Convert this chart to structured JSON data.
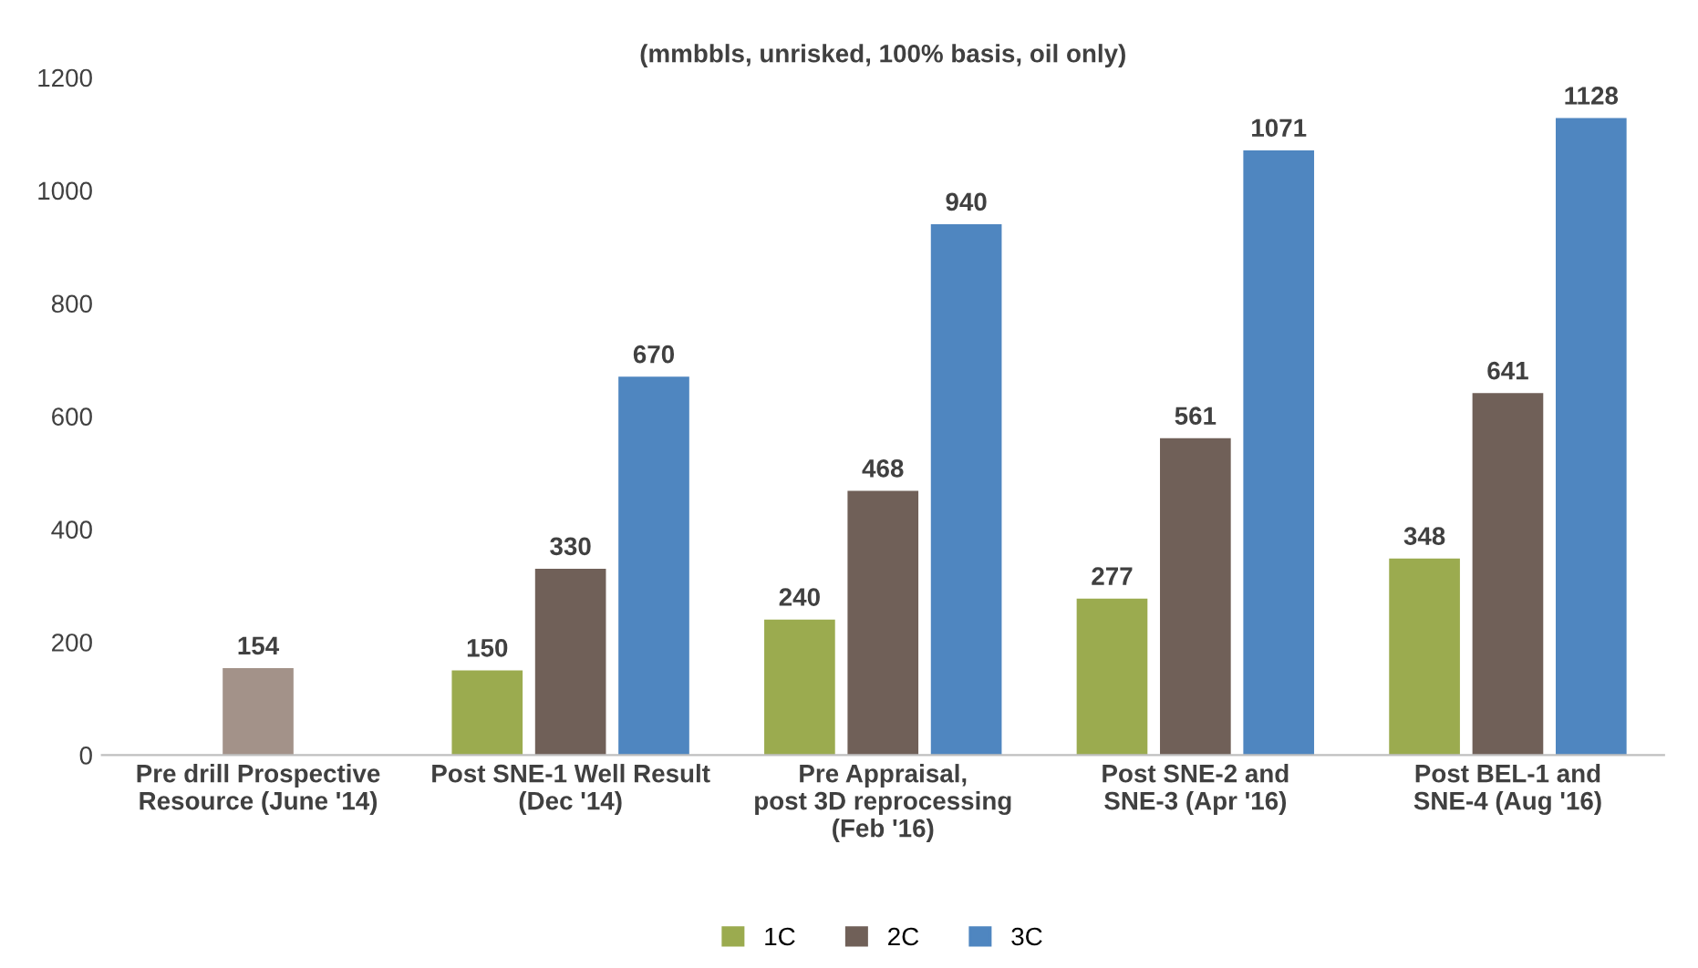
{
  "chart_data": {
    "type": "bar",
    "title": "(mmbbls, unrisked, 100% basis, oil only)",
    "categories": [
      "Pre drill Prospective\nResource (June '14)",
      "Post SNE-1 Well Result\n(Dec '14)",
      "Pre Appraisal,\npost 3D reprocessing\n(Feb '16)",
      "Post SNE-2 and\nSNE-3 (Apr '16)",
      "Post BEL-1 and\nSNE-4 (Aug '16)"
    ],
    "series": [
      {
        "name": "1C",
        "color": "#9bab4f",
        "values": [
          null,
          150,
          240,
          277,
          348
        ]
      },
      {
        "name": "2C",
        "color": "#706058",
        "colors": [
          "#a39289",
          "#706058",
          "#706058",
          "#706058",
          "#706058"
        ],
        "values": [
          154,
          330,
          468,
          561,
          641
        ]
      },
      {
        "name": "3C",
        "color": "#4f86c0",
        "values": [
          null,
          670,
          940,
          1071,
          1128
        ]
      }
    ],
    "ylim": [
      0,
      1200
    ],
    "yticks": [
      0,
      200,
      400,
      600,
      800,
      1000,
      1200
    ],
    "data_labels": true,
    "legend": "bottom",
    "grid": false
  }
}
